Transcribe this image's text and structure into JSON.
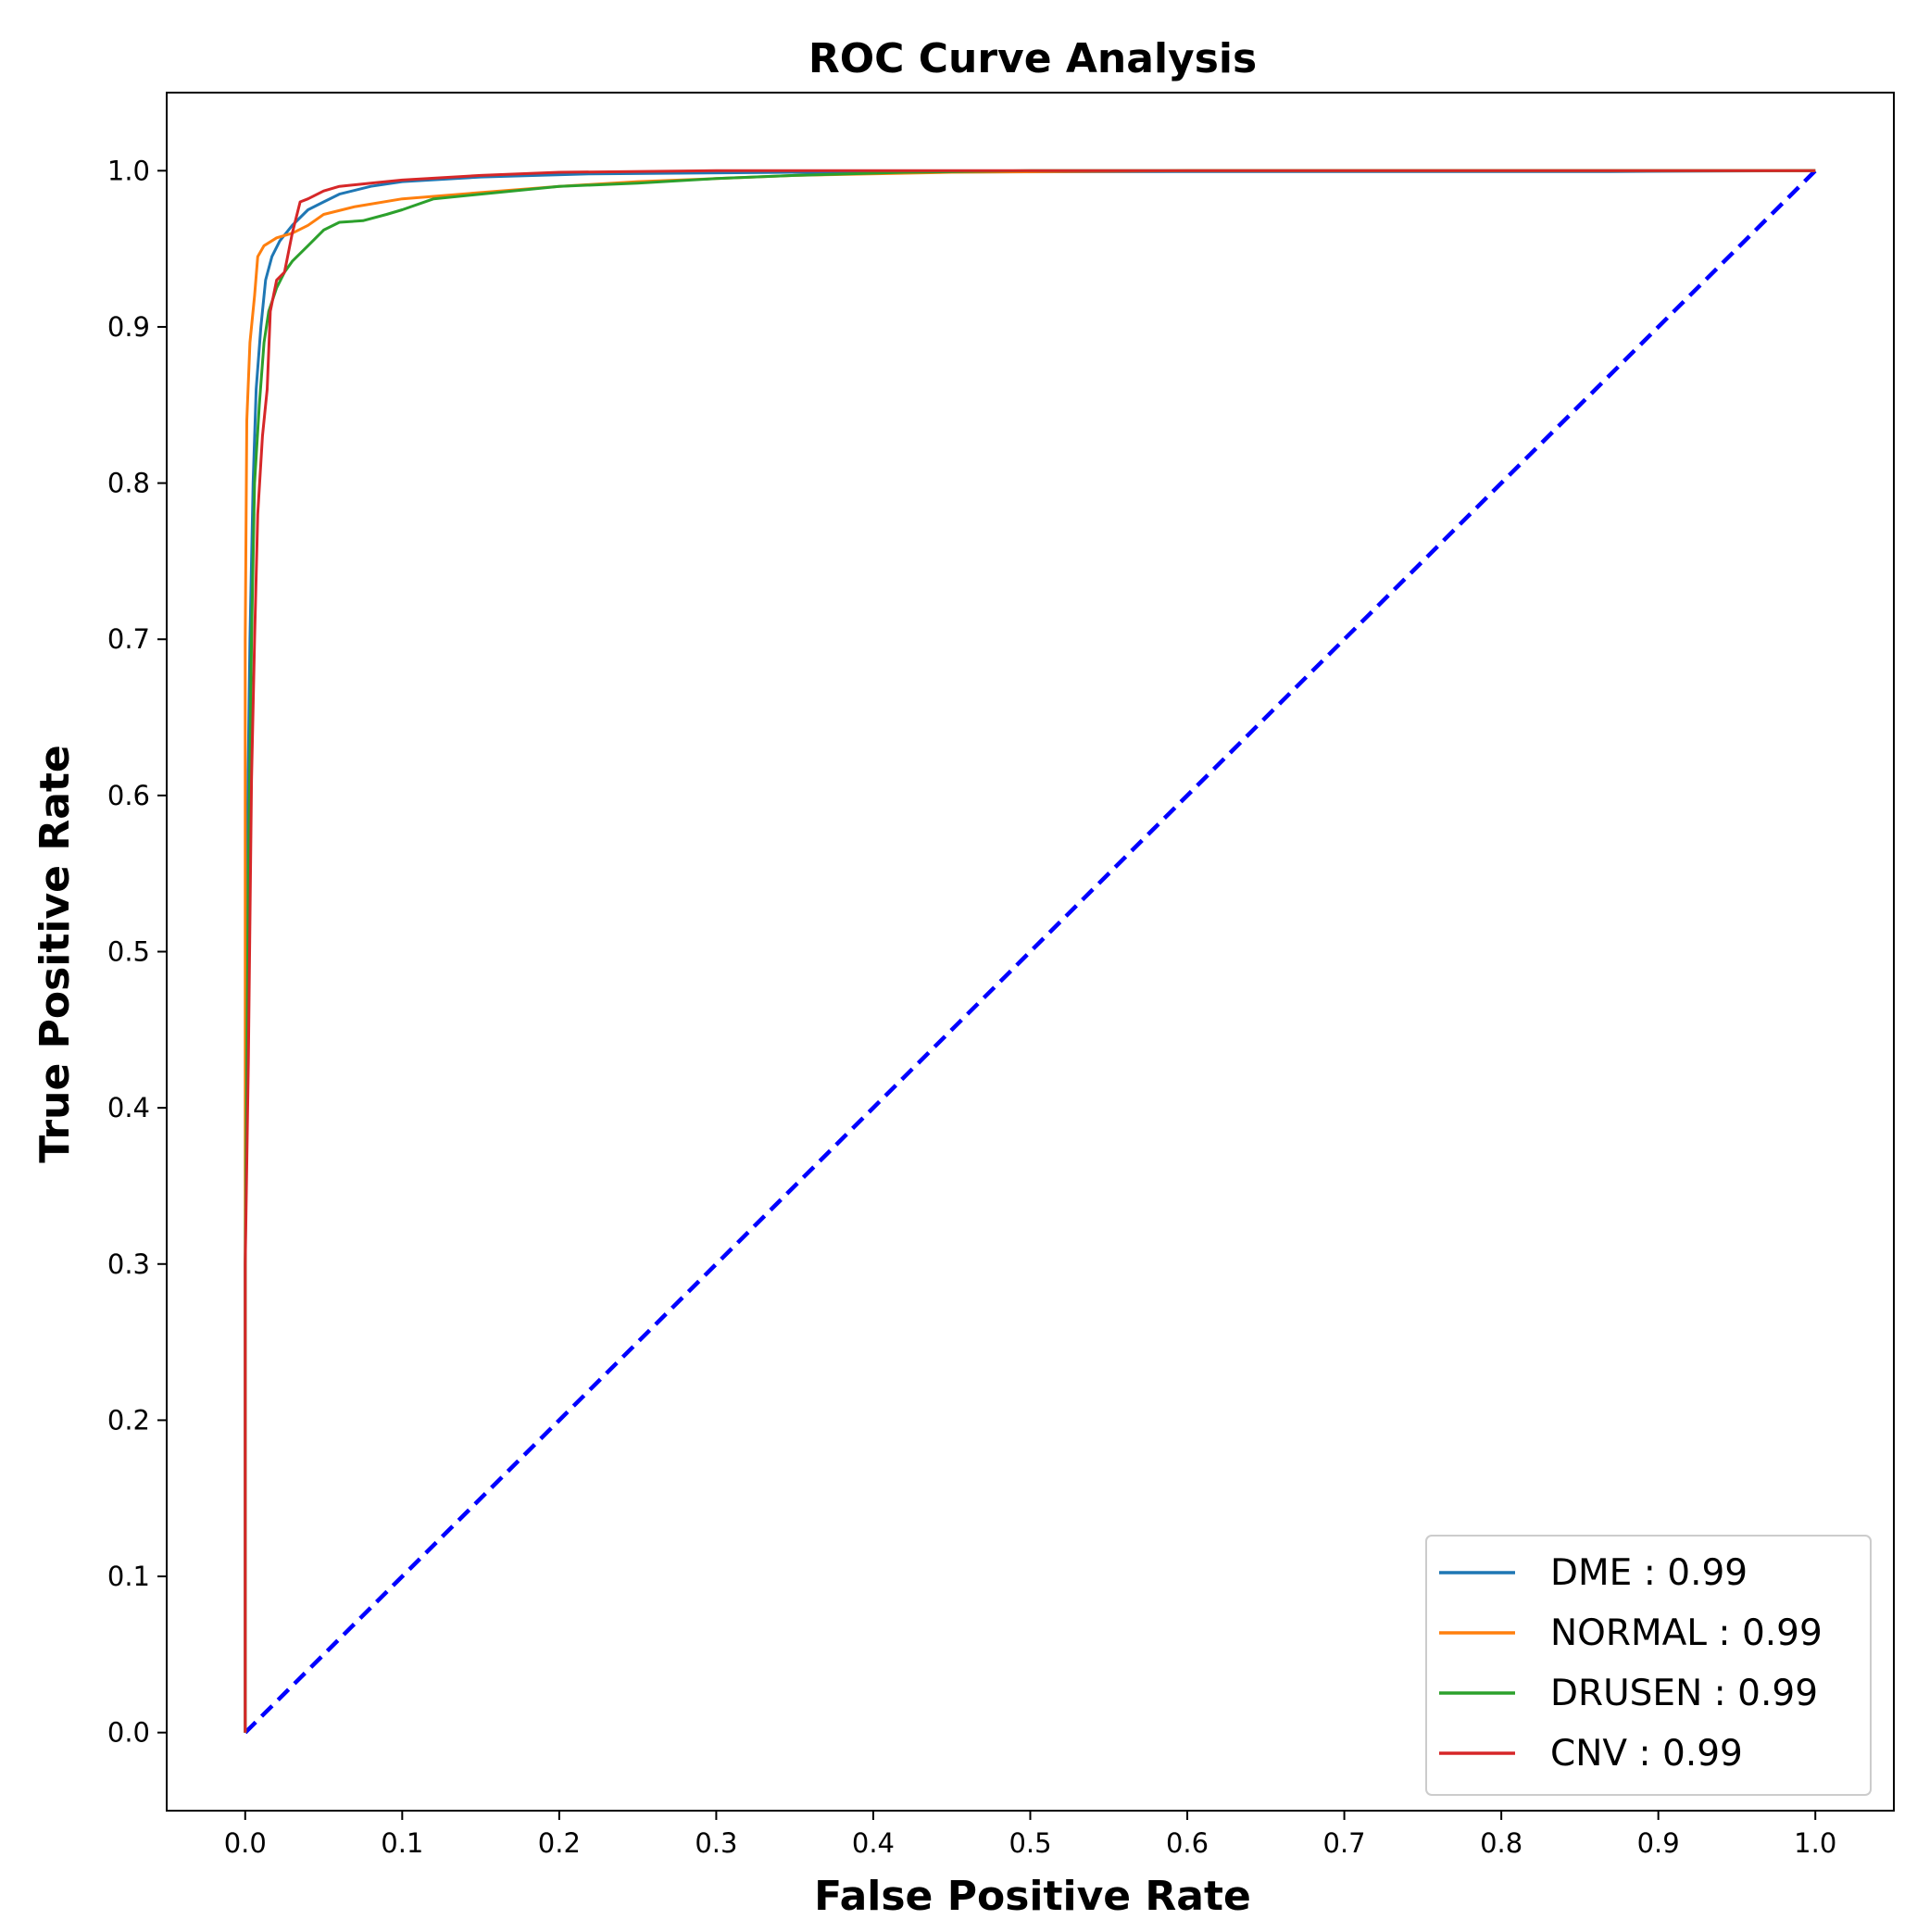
{
  "chart_data": {
    "type": "line",
    "title": "ROC Curve Analysis",
    "xlabel": "False Positive Rate",
    "ylabel": "True Positive Rate",
    "xlim": [
      -0.05,
      1.05
    ],
    "ylim": [
      -0.05,
      1.05
    ],
    "xticks": [
      "0.0",
      "0.1",
      "0.2",
      "0.3",
      "0.4",
      "0.5",
      "0.6",
      "0.7",
      "0.8",
      "0.9",
      "1.0"
    ],
    "yticks": [
      "0.0",
      "0.1",
      "0.2",
      "0.3",
      "0.4",
      "0.5",
      "0.6",
      "0.7",
      "0.8",
      "0.9",
      "1.0"
    ],
    "legend_position": "lower-right",
    "series": [
      {
        "name": "DME : 0.99",
        "color": "#1f77b4",
        "points": [
          [
            0,
            0
          ],
          [
            0,
            0.3
          ],
          [
            0.001,
            0.55
          ],
          [
            0.003,
            0.7
          ],
          [
            0.005,
            0.8
          ],
          [
            0.007,
            0.86
          ],
          [
            0.01,
            0.9
          ],
          [
            0.013,
            0.93
          ],
          [
            0.017,
            0.945
          ],
          [
            0.022,
            0.955
          ],
          [
            0.03,
            0.965
          ],
          [
            0.04,
            0.975
          ],
          [
            0.05,
            0.98
          ],
          [
            0.06,
            0.985
          ],
          [
            0.08,
            0.99
          ],
          [
            0.1,
            0.993
          ],
          [
            0.15,
            0.996
          ],
          [
            0.22,
            0.998
          ],
          [
            0.35,
            0.999
          ],
          [
            0.6,
            0.9995
          ],
          [
            0.87,
            0.9995
          ],
          [
            1,
            1
          ]
        ]
      },
      {
        "name": "NORMAL : 0.99",
        "color": "#ff7f0e",
        "points": [
          [
            0,
            0
          ],
          [
            0,
            0.55
          ],
          [
            0,
            0.7
          ],
          [
            0.001,
            0.84
          ],
          [
            0.003,
            0.89
          ],
          [
            0.006,
            0.92
          ],
          [
            0.008,
            0.945
          ],
          [
            0.012,
            0.952
          ],
          [
            0.02,
            0.957
          ],
          [
            0.03,
            0.96
          ],
          [
            0.04,
            0.965
          ],
          [
            0.05,
            0.972
          ],
          [
            0.07,
            0.977
          ],
          [
            0.1,
            0.982
          ],
          [
            0.15,
            0.986
          ],
          [
            0.2,
            0.99
          ],
          [
            0.25,
            0.993
          ],
          [
            0.3,
            0.995
          ],
          [
            0.35,
            0.997
          ],
          [
            0.45,
            0.999
          ],
          [
            0.6,
            1
          ],
          [
            1,
            1
          ]
        ]
      },
      {
        "name": "DRUSEN : 0.99",
        "color": "#2ca02c",
        "points": [
          [
            0,
            0
          ],
          [
            0,
            0.3
          ],
          [
            0.002,
            0.55
          ],
          [
            0.004,
            0.7
          ],
          [
            0.006,
            0.8
          ],
          [
            0.009,
            0.85
          ],
          [
            0.012,
            0.89
          ],
          [
            0.015,
            0.91
          ],
          [
            0.02,
            0.925
          ],
          [
            0.025,
            0.935
          ],
          [
            0.03,
            0.942
          ],
          [
            0.04,
            0.952
          ],
          [
            0.05,
            0.962
          ],
          [
            0.06,
            0.967
          ],
          [
            0.075,
            0.968
          ],
          [
            0.09,
            0.972
          ],
          [
            0.1,
            0.975
          ],
          [
            0.12,
            0.982
          ],
          [
            0.15,
            0.985
          ],
          [
            0.2,
            0.99
          ],
          [
            0.25,
            0.992
          ],
          [
            0.3,
            0.995
          ],
          [
            0.35,
            0.997
          ],
          [
            0.42,
            0.999
          ],
          [
            0.5,
            1
          ],
          [
            1,
            1
          ]
        ]
      },
      {
        "name": "CNV : 0.99",
        "color": "#d62728",
        "points": [
          [
            0,
            0
          ],
          [
            0,
            0.3
          ],
          [
            0.002,
            0.43
          ],
          [
            0.004,
            0.61
          ],
          [
            0.006,
            0.7
          ],
          [
            0.008,
            0.78
          ],
          [
            0.011,
            0.83
          ],
          [
            0.014,
            0.86
          ],
          [
            0.016,
            0.91
          ],
          [
            0.02,
            0.93
          ],
          [
            0.025,
            0.935
          ],
          [
            0.03,
            0.96
          ],
          [
            0.035,
            0.98
          ],
          [
            0.04,
            0.982
          ],
          [
            0.05,
            0.987
          ],
          [
            0.06,
            0.99
          ],
          [
            0.08,
            0.992
          ],
          [
            0.1,
            0.994
          ],
          [
            0.15,
            0.997
          ],
          [
            0.2,
            0.999
          ],
          [
            0.3,
            1
          ],
          [
            1,
            1
          ]
        ]
      },
      {
        "name": "",
        "color": "#0000ff",
        "dashed": true,
        "points": [
          [
            0,
            0
          ],
          [
            1,
            1
          ]
        ]
      }
    ]
  }
}
